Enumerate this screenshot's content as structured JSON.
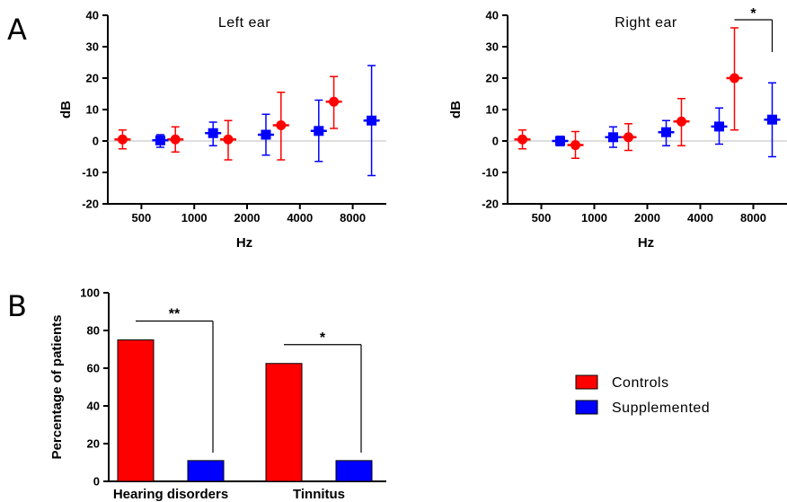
{
  "panel_labels": [
    "A",
    "B"
  ],
  "legend": {
    "entries": [
      {
        "label": "Controls",
        "color": "#ff0000"
      },
      {
        "label": "Supplemented",
        "color": "#0000ff"
      }
    ]
  },
  "chart_data": [
    {
      "type": "scatter",
      "title": "Left ear",
      "xlabel": "Hz",
      "ylabel": "dB",
      "ylim": [
        -20,
        40
      ],
      "yticks": [
        "-20",
        "-10",
        "0",
        "10",
        "20",
        "30",
        "40"
      ],
      "categories": [
        "500",
        "1000",
        "2000",
        "4000",
        "8000"
      ],
      "series": [
        {
          "name": "Controls",
          "color": "#ff0000",
          "marker": "circle",
          "values": [
            0.5,
            0.5,
            0.5,
            5,
            12.5
          ],
          "err_low": [
            -2.5,
            -3.5,
            -6,
            -6,
            4
          ],
          "err_high": [
            3.5,
            4.5,
            6.5,
            15.5,
            20.5
          ]
        },
        {
          "name": "Supplemented",
          "color": "#0000ff",
          "marker": "square",
          "values": [
            0.2,
            2.5,
            2,
            3.2,
            6.5
          ],
          "err_low": [
            -2,
            -1.5,
            -4.5,
            -6.5,
            -11
          ],
          "err_high": [
            2,
            6,
            8.5,
            13,
            24
          ]
        }
      ],
      "significance": []
    },
    {
      "type": "scatter",
      "title": "Right ear",
      "xlabel": "Hz",
      "ylabel": "dB",
      "ylim": [
        -20,
        40
      ],
      "yticks": [
        "-20",
        "-10",
        "0",
        "10",
        "20",
        "30",
        "40"
      ],
      "categories": [
        "500",
        "1000",
        "2000",
        "4000",
        "8000"
      ],
      "series": [
        {
          "name": "Controls",
          "color": "#ff0000",
          "marker": "circle",
          "values": [
            0.5,
            -1.3,
            1.2,
            6.2,
            20
          ],
          "err_low": [
            -2.5,
            -5.5,
            -3,
            -1.5,
            3.5
          ],
          "err_high": [
            3.5,
            3,
            5.5,
            13.5,
            36
          ]
        },
        {
          "name": "Supplemented",
          "color": "#0000ff",
          "marker": "square",
          "values": [
            0,
            1.2,
            2.8,
            4.6,
            6.8
          ],
          "err_low": [
            -1.5,
            -2,
            -1.5,
            -1,
            -5
          ],
          "err_high": [
            1.5,
            4.5,
            6.5,
            10.5,
            18.5
          ]
        }
      ],
      "significance": [
        {
          "category_index": 4,
          "label": "*"
        }
      ]
    },
    {
      "type": "bar",
      "title": "",
      "xlabel": "",
      "ylabel": "Percentage of patients",
      "ylim": [
        0,
        100
      ],
      "yticks": [
        "0",
        "20",
        "40",
        "60",
        "80",
        "100"
      ],
      "categories": [
        "Hearing disorders",
        "Tinnitus"
      ],
      "series": [
        {
          "name": "Controls",
          "color": "#ff0000",
          "values": [
            75,
            62.5
          ]
        },
        {
          "name": "Supplemented",
          "color": "#0000ff",
          "values": [
            11,
            11
          ]
        }
      ],
      "significance": [
        {
          "category_index": 0,
          "label": "**"
        },
        {
          "category_index": 1,
          "label": "*"
        }
      ]
    }
  ]
}
